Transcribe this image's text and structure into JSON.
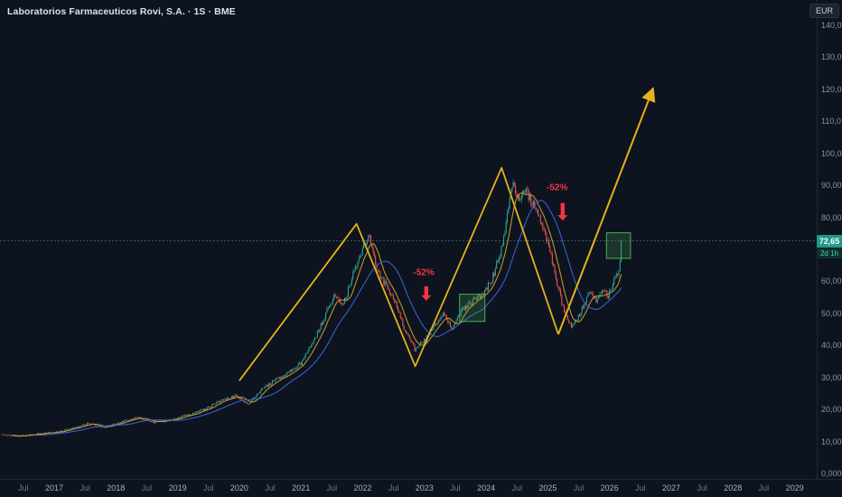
{
  "symbol": {
    "title": "Laboratorios Farmaceuticos Rovi, S.A. · 1S · BME"
  },
  "price_scale": {
    "currency": "EUR",
    "last_price_label": "72,65",
    "countdown_label": "2d 1h",
    "ticks": [
      {
        "label": "140,0",
        "value": 140
      },
      {
        "label": "130,0",
        "value": 130
      },
      {
        "label": "120,0",
        "value": 120
      },
      {
        "label": "110,0",
        "value": 110
      },
      {
        "label": "100,00",
        "value": 100
      },
      {
        "label": "90,00",
        "value": 90
      },
      {
        "label": "80,00",
        "value": 80
      },
      {
        "label": "60,00",
        "value": 60
      },
      {
        "label": "50,00",
        "value": 50
      },
      {
        "label": "40,00",
        "value": 40
      },
      {
        "label": "30,00",
        "value": 30
      },
      {
        "label": "20,00",
        "value": 20
      },
      {
        "label": "10,000",
        "value": 10
      },
      {
        "label": "0,0000",
        "value": 0
      }
    ]
  },
  "time_scale": {
    "ticks": [
      {
        "label": "Jul",
        "value": 2016.5
      },
      {
        "label": "2017",
        "value": 2017,
        "year": true
      },
      {
        "label": "Jul",
        "value": 2017.5
      },
      {
        "label": "2018",
        "value": 2018,
        "year": true
      },
      {
        "label": "Jul",
        "value": 2018.5
      },
      {
        "label": "2019",
        "value": 2019,
        "year": true
      },
      {
        "label": "Jul",
        "value": 2019.5
      },
      {
        "label": "2020",
        "value": 2020,
        "year": true
      },
      {
        "label": "Jul",
        "value": 2020.5
      },
      {
        "label": "2021",
        "value": 2021,
        "year": true
      },
      {
        "label": "Jul",
        "value": 2021.5
      },
      {
        "label": "2022",
        "value": 2022,
        "year": true
      },
      {
        "label": "Jul",
        "value": 2022.5
      },
      {
        "label": "2023",
        "value": 2023,
        "year": true
      },
      {
        "label": "Jul",
        "value": 2023.5
      },
      {
        "label": "2024",
        "value": 2024,
        "year": true
      },
      {
        "label": "Jul",
        "value": 2024.5
      },
      {
        "label": "2025",
        "value": 2025,
        "year": true
      },
      {
        "label": "Jul",
        "value": 2025.5
      },
      {
        "label": "2026",
        "value": 2026,
        "year": true
      },
      {
        "label": "Jul",
        "value": 2026.5
      },
      {
        "label": "2027",
        "value": 2027,
        "year": true
      },
      {
        "label": "Jul",
        "value": 2027.5
      },
      {
        "label": "2028",
        "value": 2028,
        "year": true
      },
      {
        "label": "Jul",
        "value": 2028.5
      },
      {
        "label": "2029",
        "value": 2029,
        "year": true
      }
    ]
  },
  "chart_data": {
    "type": "candlestick",
    "symbol": "Laboratorios Farmaceuticos Rovi, S.A.",
    "interval": "1S",
    "exchange": "BME",
    "currency": "EUR",
    "last_price": 72.65,
    "time_range": [
      2016.15,
      2026.2
    ],
    "y_range": [
      0,
      140
    ],
    "x_axis_visible_range": [
      2016.3,
      2029.4
    ],
    "price_path_anchors": [
      [
        2016.15,
        12.2
      ],
      [
        2016.4,
        11.6
      ],
      [
        2016.7,
        12.3
      ],
      [
        2017.0,
        12.8
      ],
      [
        2017.3,
        14.2
      ],
      [
        2017.55,
        15.6
      ],
      [
        2017.8,
        14.3
      ],
      [
        2018.05,
        15.8
      ],
      [
        2018.35,
        17.6
      ],
      [
        2018.6,
        15.9
      ],
      [
        2018.9,
        16.8
      ],
      [
        2019.15,
        18.2
      ],
      [
        2019.45,
        20.0
      ],
      [
        2019.7,
        22.8
      ],
      [
        2019.95,
        24.3
      ],
      [
        2020.15,
        21.5
      ],
      [
        2020.35,
        26.0
      ],
      [
        2020.6,
        29.5
      ],
      [
        2020.8,
        31.5
      ],
      [
        2021.0,
        34.5
      ],
      [
        2021.2,
        41.0
      ],
      [
        2021.4,
        50.0
      ],
      [
        2021.55,
        56.0
      ],
      [
        2021.68,
        52.5
      ],
      [
        2021.85,
        62.0
      ],
      [
        2022.0,
        70.0
      ],
      [
        2022.1,
        74.0
      ],
      [
        2022.22,
        64.0
      ],
      [
        2022.38,
        58.5
      ],
      [
        2022.52,
        54.0
      ],
      [
        2022.68,
        45.0
      ],
      [
        2022.85,
        38.5
      ],
      [
        2023.0,
        41.5
      ],
      [
        2023.15,
        46.0
      ],
      [
        2023.3,
        49.5
      ],
      [
        2023.45,
        45.5
      ],
      [
        2023.6,
        50.5
      ],
      [
        2023.8,
        54.0
      ],
      [
        2023.95,
        56.0
      ],
      [
        2024.1,
        61.0
      ],
      [
        2024.25,
        70.0
      ],
      [
        2024.42,
        90.0
      ],
      [
        2024.52,
        85.5
      ],
      [
        2024.65,
        88.0
      ],
      [
        2024.8,
        82.5
      ],
      [
        2024.95,
        76.0
      ],
      [
        2025.05,
        68.0
      ],
      [
        2025.18,
        57.0
      ],
      [
        2025.28,
        49.5
      ],
      [
        2025.38,
        45.5
      ],
      [
        2025.5,
        49.0
      ],
      [
        2025.6,
        54.0
      ],
      [
        2025.7,
        57.0
      ],
      [
        2025.78,
        54.0
      ],
      [
        2025.88,
        57.5
      ],
      [
        2025.98,
        55.5
      ],
      [
        2026.08,
        60.0
      ],
      [
        2026.16,
        63.5
      ],
      [
        2026.2,
        72.65
      ]
    ],
    "moving_averages": [
      {
        "name": "fast-ma",
        "period": 10,
        "color": "#c99b2d"
      },
      {
        "name": "slow-ma",
        "period": 30,
        "color": "#3b63d8"
      }
    ],
    "trend_zigzag": {
      "color": "#e5b11c",
      "points": [
        [
          2020.0,
          29.0
        ],
        [
          2021.9,
          78.0
        ],
        [
          2022.85,
          33.5
        ],
        [
          2024.25,
          95.5
        ],
        [
          2025.17,
          43.5
        ]
      ]
    },
    "projection_arrow": {
      "color": "#e5b11c",
      "from": [
        2025.17,
        43.5
      ],
      "to": [
        2026.7,
        120.0
      ]
    },
    "annotations": [
      {
        "text": "-52%",
        "x": 2022.99,
        "y": 62.0,
        "arrow": {
          "x": 2023.03,
          "top": 58.5,
          "bottom": 54.0
        }
      },
      {
        "text": "-52%",
        "x": 2025.15,
        "y": 88.5,
        "arrow": {
          "x": 2025.24,
          "top": 84.5,
          "bottom": 79.0
        }
      }
    ],
    "boxes": [
      {
        "x1": 2023.57,
        "x2": 2023.98,
        "y1": 47.5,
        "y2": 56.0
      },
      {
        "x1": 2025.95,
        "x2": 2026.34,
        "y1": 67.2,
        "y2": 75.2
      }
    ],
    "colors": {
      "up": "#26a69a",
      "down": "#ef5350",
      "price_line": "#50988f",
      "red": "#f23645",
      "box_stroke": "#4caf50",
      "box_fill": "rgba(76,175,80,0.22)",
      "background": "#0d141f"
    }
  }
}
